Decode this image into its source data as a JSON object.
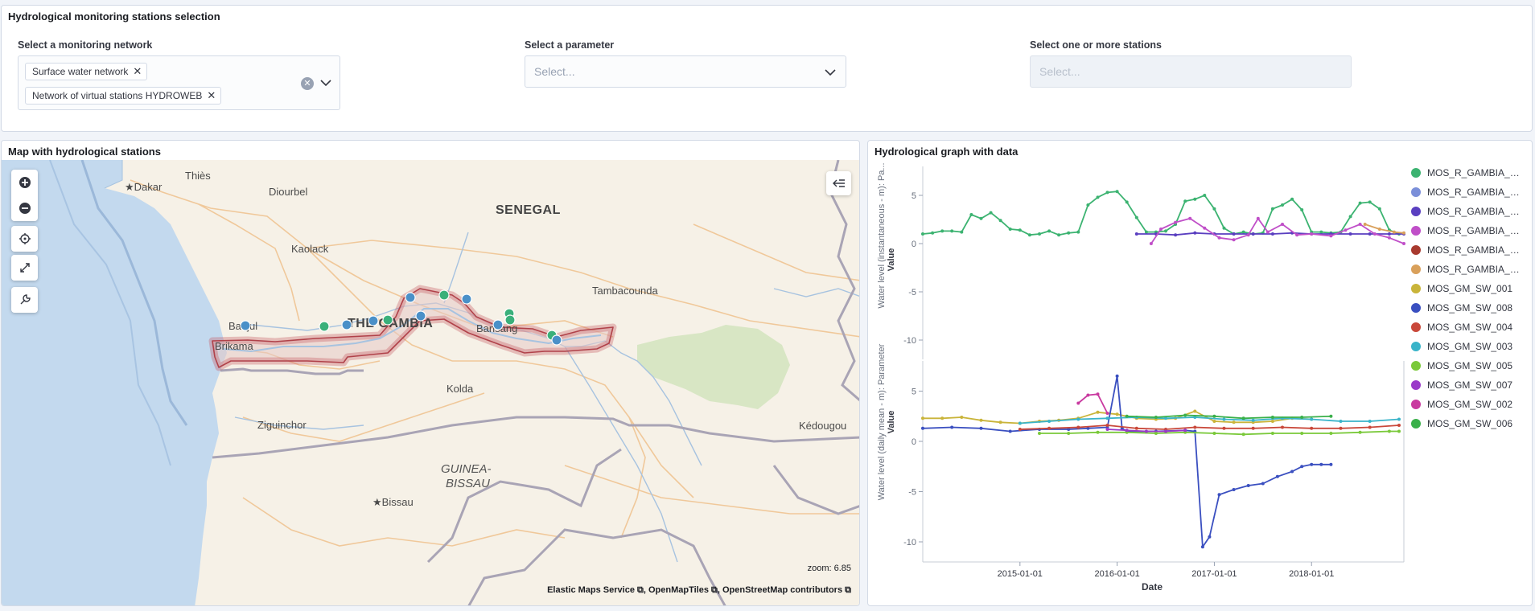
{
  "controls": {
    "title": "Hydrological monitoring stations selection",
    "network": {
      "label": "Select a monitoring network",
      "selected": [
        "Surface water network",
        "Network of virtual stations HYDROWEB"
      ]
    },
    "parameter": {
      "label": "Select a parameter",
      "placeholder": "Select..."
    },
    "stations": {
      "label": "Select one or more stations",
      "placeholder": "Select..."
    }
  },
  "map": {
    "title": "Map with hydrological stations",
    "labels": {
      "senegal": "SENEGAL",
      "gambia": "THE GAMBIA",
      "guinea_bissau_1": "GUINEA-",
      "guinea_bissau_2": "BISSAU",
      "thies": "Thiès",
      "dakar": "Dakar",
      "diourbel": "Diourbel",
      "kaolack": "Kaolack",
      "tambacounda": "Tambacounda",
      "banjul": "Banjul",
      "brikama": "Brikama",
      "bansang": "Bansang",
      "kolda": "Kolda",
      "ziguinchor": "Ziguinchor",
      "kedougou": "Kédougou",
      "bissau": "Bissau"
    },
    "zoom": "zoom: 6.85",
    "attribution": "Elastic Maps Service ⧉, OpenMapTiles ⧉, OpenStreetMap contributors ⧉",
    "station_colors": {
      "surface_water": "#4a90c8",
      "virtual": "#3ab07a"
    }
  },
  "graph": {
    "title": "Hydrological graph with data",
    "top_axis_title": "Water level (instantaneous - m): Pa...",
    "bottom_axis_title": "Water level (daily mean - m): Parameter",
    "value_label": "Value",
    "x_label": "Date",
    "legend": [
      {
        "name": "MOS_R_GAMBIA_GA...",
        "color": "#3cb371"
      },
      {
        "name": "MOS_R_GAMBIA_GA...",
        "color": "#7b8fd9"
      },
      {
        "name": "MOS_R_GAMBIA_GA...",
        "color": "#5a3fc0"
      },
      {
        "name": "MOS_R_GAMBIA_GA...",
        "color": "#c04fc8"
      },
      {
        "name": "MOS_R_GAMBIA_GA...",
        "color": "#a83a2f"
      },
      {
        "name": "MOS_R_GAMBIA_GA...",
        "color": "#d9a05b"
      },
      {
        "name": "MOS_GM_SW_001",
        "color": "#c9b43a"
      },
      {
        "name": "MOS_GM_SW_008",
        "color": "#3a4fc0"
      },
      {
        "name": "MOS_GM_SW_004",
        "color": "#c9483a"
      },
      {
        "name": "MOS_GM_SW_003",
        "color": "#3ab4c9"
      },
      {
        "name": "MOS_GM_SW_005",
        "color": "#7ac93a"
      },
      {
        "name": "MOS_GM_SW_007",
        "color": "#9a3ac9"
      },
      {
        "name": "MOS_GM_SW_002",
        "color": "#c93aa0"
      },
      {
        "name": "MOS_GM_SW_006",
        "color": "#3ab04a"
      }
    ]
  },
  "chart_data": [
    {
      "type": "line",
      "title": "",
      "xlabel": "Date",
      "ylabel": "Water level (instantaneous - m): Pa...",
      "x_ticks": [
        "2015-01-01",
        "2016-01-01",
        "2017-01-01",
        "2018-01-01"
      ],
      "y_ticks": [
        5,
        0,
        -5,
        -10
      ],
      "ylim": [
        -12,
        8
      ],
      "xlim": [
        2014.0,
        2018.95
      ],
      "series": [
        {
          "name": "MOS_R_GAMBIA_GA...",
          "color": "#3cb371",
          "x": [
            2014.0,
            2014.1,
            2014.2,
            2014.3,
            2014.4,
            2014.5,
            2014.6,
            2014.7,
            2014.8,
            2014.9,
            2015.0,
            2015.1,
            2015.2,
            2015.3,
            2015.4,
            2015.5,
            2015.6,
            2015.7,
            2015.8,
            2015.9,
            2016.0,
            2016.1,
            2016.2,
            2016.3,
            2016.4,
            2016.5,
            2016.6,
            2016.7,
            2016.8,
            2016.9,
            2017.0,
            2017.1,
            2017.2,
            2017.3,
            2017.4,
            2017.5,
            2017.6,
            2017.7,
            2017.8,
            2017.9,
            2018.0,
            2018.1,
            2018.2,
            2018.3,
            2018.4,
            2018.5,
            2018.6,
            2018.7,
            2018.8,
            2018.9
          ],
          "y": [
            1.0,
            1.1,
            1.3,
            1.3,
            1.2,
            3.0,
            2.6,
            3.2,
            2.4,
            1.5,
            1.4,
            0.9,
            1.0,
            1.3,
            0.9,
            1.1,
            1.2,
            4.0,
            4.8,
            5.3,
            5.4,
            4.3,
            2.7,
            1.2,
            1.2,
            1.3,
            2.0,
            4.4,
            4.6,
            5.0,
            3.6,
            1.6,
            1.0,
            1.2,
            1.0,
            1.1,
            3.6,
            4.0,
            4.6,
            3.5,
            1.2,
            1.2,
            1.1,
            1.2,
            2.8,
            4.2,
            4.3,
            3.6,
            1.4,
            1.0
          ]
        },
        {
          "name": "MOS_R_GAMBIA_GA...",
          "color": "#5a3fc0",
          "x": [
            2016.2,
            2016.4,
            2016.6,
            2016.8,
            2017.0,
            2017.2,
            2017.4,
            2017.6,
            2017.8,
            2018.0,
            2018.2,
            2018.4,
            2018.6,
            2018.8,
            2018.95
          ],
          "y": [
            1.0,
            1.0,
            0.9,
            1.1,
            1.0,
            1.0,
            1.0,
            1.0,
            1.1,
            1.0,
            1.0,
            1.0,
            1.0,
            1.0,
            1.0
          ]
        },
        {
          "name": "MOS_R_GAMBIA_GA...",
          "color": "#c04fc8",
          "x": [
            2016.35,
            2016.45,
            2016.6,
            2016.75,
            2016.9,
            2017.05,
            2017.2,
            2017.35,
            2017.45,
            2017.55,
            2017.7,
            2017.85,
            2018.0,
            2018.2,
            2018.35,
            2018.5,
            2018.65,
            2018.8,
            2018.95
          ],
          "y": [
            0.0,
            1.5,
            2.2,
            2.6,
            1.6,
            0.6,
            0.4,
            0.9,
            2.6,
            1.2,
            2.0,
            0.9,
            1.0,
            0.8,
            1.4,
            2.0,
            1.0,
            0.6,
            0.0
          ]
        },
        {
          "name": "MOS_R_GAMBIA_GA...",
          "color": "#d9a05b",
          "x": [
            2018.55,
            2018.7,
            2018.85,
            2018.95
          ],
          "y": [
            2.0,
            1.5,
            1.2,
            1.1
          ]
        }
      ]
    },
    {
      "type": "line",
      "title": "",
      "xlabel": "Date",
      "ylabel": "Water level (daily mean - m): Parameter",
      "x_ticks": [
        "2015-01-01",
        "2016-01-01",
        "2017-01-01",
        "2018-01-01"
      ],
      "y_ticks": [
        5,
        0,
        -5,
        -10
      ],
      "ylim": [
        -12,
        8
      ],
      "xlim": [
        2014.0,
        2018.95
      ],
      "series": [
        {
          "name": "MOS_GM_SW_001",
          "color": "#c9b43a",
          "x": [
            2014.0,
            2014.2,
            2014.4,
            2014.6,
            2014.8,
            2015.0,
            2015.2,
            2015.4,
            2015.6,
            2015.8,
            2016.0,
            2016.2,
            2016.4,
            2016.6,
            2016.8,
            2017.0,
            2017.2,
            2017.4,
            2017.6,
            2017.8,
            2018.0
          ],
          "y": [
            2.3,
            2.3,
            2.4,
            2.1,
            1.9,
            1.8,
            2.0,
            2.1,
            2.3,
            2.9,
            2.7,
            2.3,
            2.2,
            2.3,
            3.0,
            2.0,
            1.9,
            1.9,
            2.0,
            2.3,
            2.2
          ]
        },
        {
          "name": "MOS_GM_SW_008",
          "color": "#3a4fc0",
          "x": [
            2014.0,
            2014.3,
            2014.6,
            2014.9,
            2015.2,
            2015.5,
            2015.7,
            2015.9,
            2016.0,
            2016.05,
            2016.1,
            2016.4,
            2016.7,
            2016.8,
            2016.88,
            2016.95,
            2017.05,
            2017.2,
            2017.35,
            2017.5,
            2017.65,
            2017.8,
            2017.9,
            2018.0,
            2018.1,
            2018.2
          ],
          "y": [
            1.3,
            1.4,
            1.3,
            1.0,
            1.2,
            1.2,
            1.3,
            1.4,
            6.5,
            1.3,
            1.0,
            1.0,
            1.1,
            1.0,
            -10.5,
            -9.5,
            -5.3,
            -4.8,
            -4.4,
            -4.2,
            -3.5,
            -3.0,
            -2.5,
            -2.3,
            -2.3,
            -2.3
          ]
        },
        {
          "name": "MOS_GM_SW_004",
          "color": "#c9483a",
          "x": [
            2015.0,
            2015.3,
            2015.6,
            2015.9,
            2016.2,
            2016.5,
            2016.8,
            2017.1,
            2017.4,
            2017.7,
            2018.0,
            2018.3,
            2018.6,
            2018.9
          ],
          "y": [
            1.2,
            1.3,
            1.4,
            1.6,
            1.3,
            1.2,
            1.4,
            1.3,
            1.3,
            1.4,
            1.3,
            1.3,
            1.4,
            1.6
          ]
        },
        {
          "name": "MOS_GM_SW_003",
          "color": "#3ab4c9",
          "x": [
            2015.0,
            2015.3,
            2015.6,
            2015.9,
            2016.2,
            2016.5,
            2016.8,
            2017.1,
            2017.4,
            2017.7,
            2018.0,
            2018.3,
            2018.6,
            2018.9
          ],
          "y": [
            1.8,
            2.0,
            2.2,
            2.3,
            2.4,
            2.3,
            2.4,
            2.2,
            2.1,
            2.3,
            2.2,
            2.0,
            2.0,
            2.2
          ]
        },
        {
          "name": "MOS_GM_SW_005",
          "color": "#7ac93a",
          "x": [
            2015.2,
            2015.5,
            2015.8,
            2016.1,
            2016.4,
            2016.7,
            2017.0,
            2017.3,
            2017.6,
            2017.9,
            2018.2,
            2018.5,
            2018.8,
            2018.9
          ],
          "y": [
            0.8,
            0.8,
            0.9,
            0.9,
            0.8,
            0.9,
            0.8,
            0.7,
            0.8,
            0.8,
            0.8,
            0.9,
            1.0,
            1.0
          ]
        },
        {
          "name": "MOS_GM_SW_007",
          "color": "#9a3ac9",
          "x": [
            2015.9,
            2016.1,
            2016.3,
            2016.5,
            2016.7
          ],
          "y": [
            1.2,
            1.1,
            1.0,
            1.0,
            1.1
          ]
        },
        {
          "name": "MOS_GM_SW_002",
          "color": "#c93aa0",
          "x": [
            2015.6,
            2015.7,
            2015.8,
            2015.9
          ],
          "y": [
            3.8,
            4.6,
            4.7,
            2.8
          ]
        },
        {
          "name": "MOS_GM_SW_006",
          "color": "#3ab04a",
          "x": [
            2016.1,
            2016.4,
            2016.7,
            2017.0,
            2017.3,
            2017.6,
            2017.9,
            2018.2
          ],
          "y": [
            2.5,
            2.4,
            2.6,
            2.5,
            2.3,
            2.4,
            2.4,
            2.5
          ]
        }
      ]
    }
  ]
}
